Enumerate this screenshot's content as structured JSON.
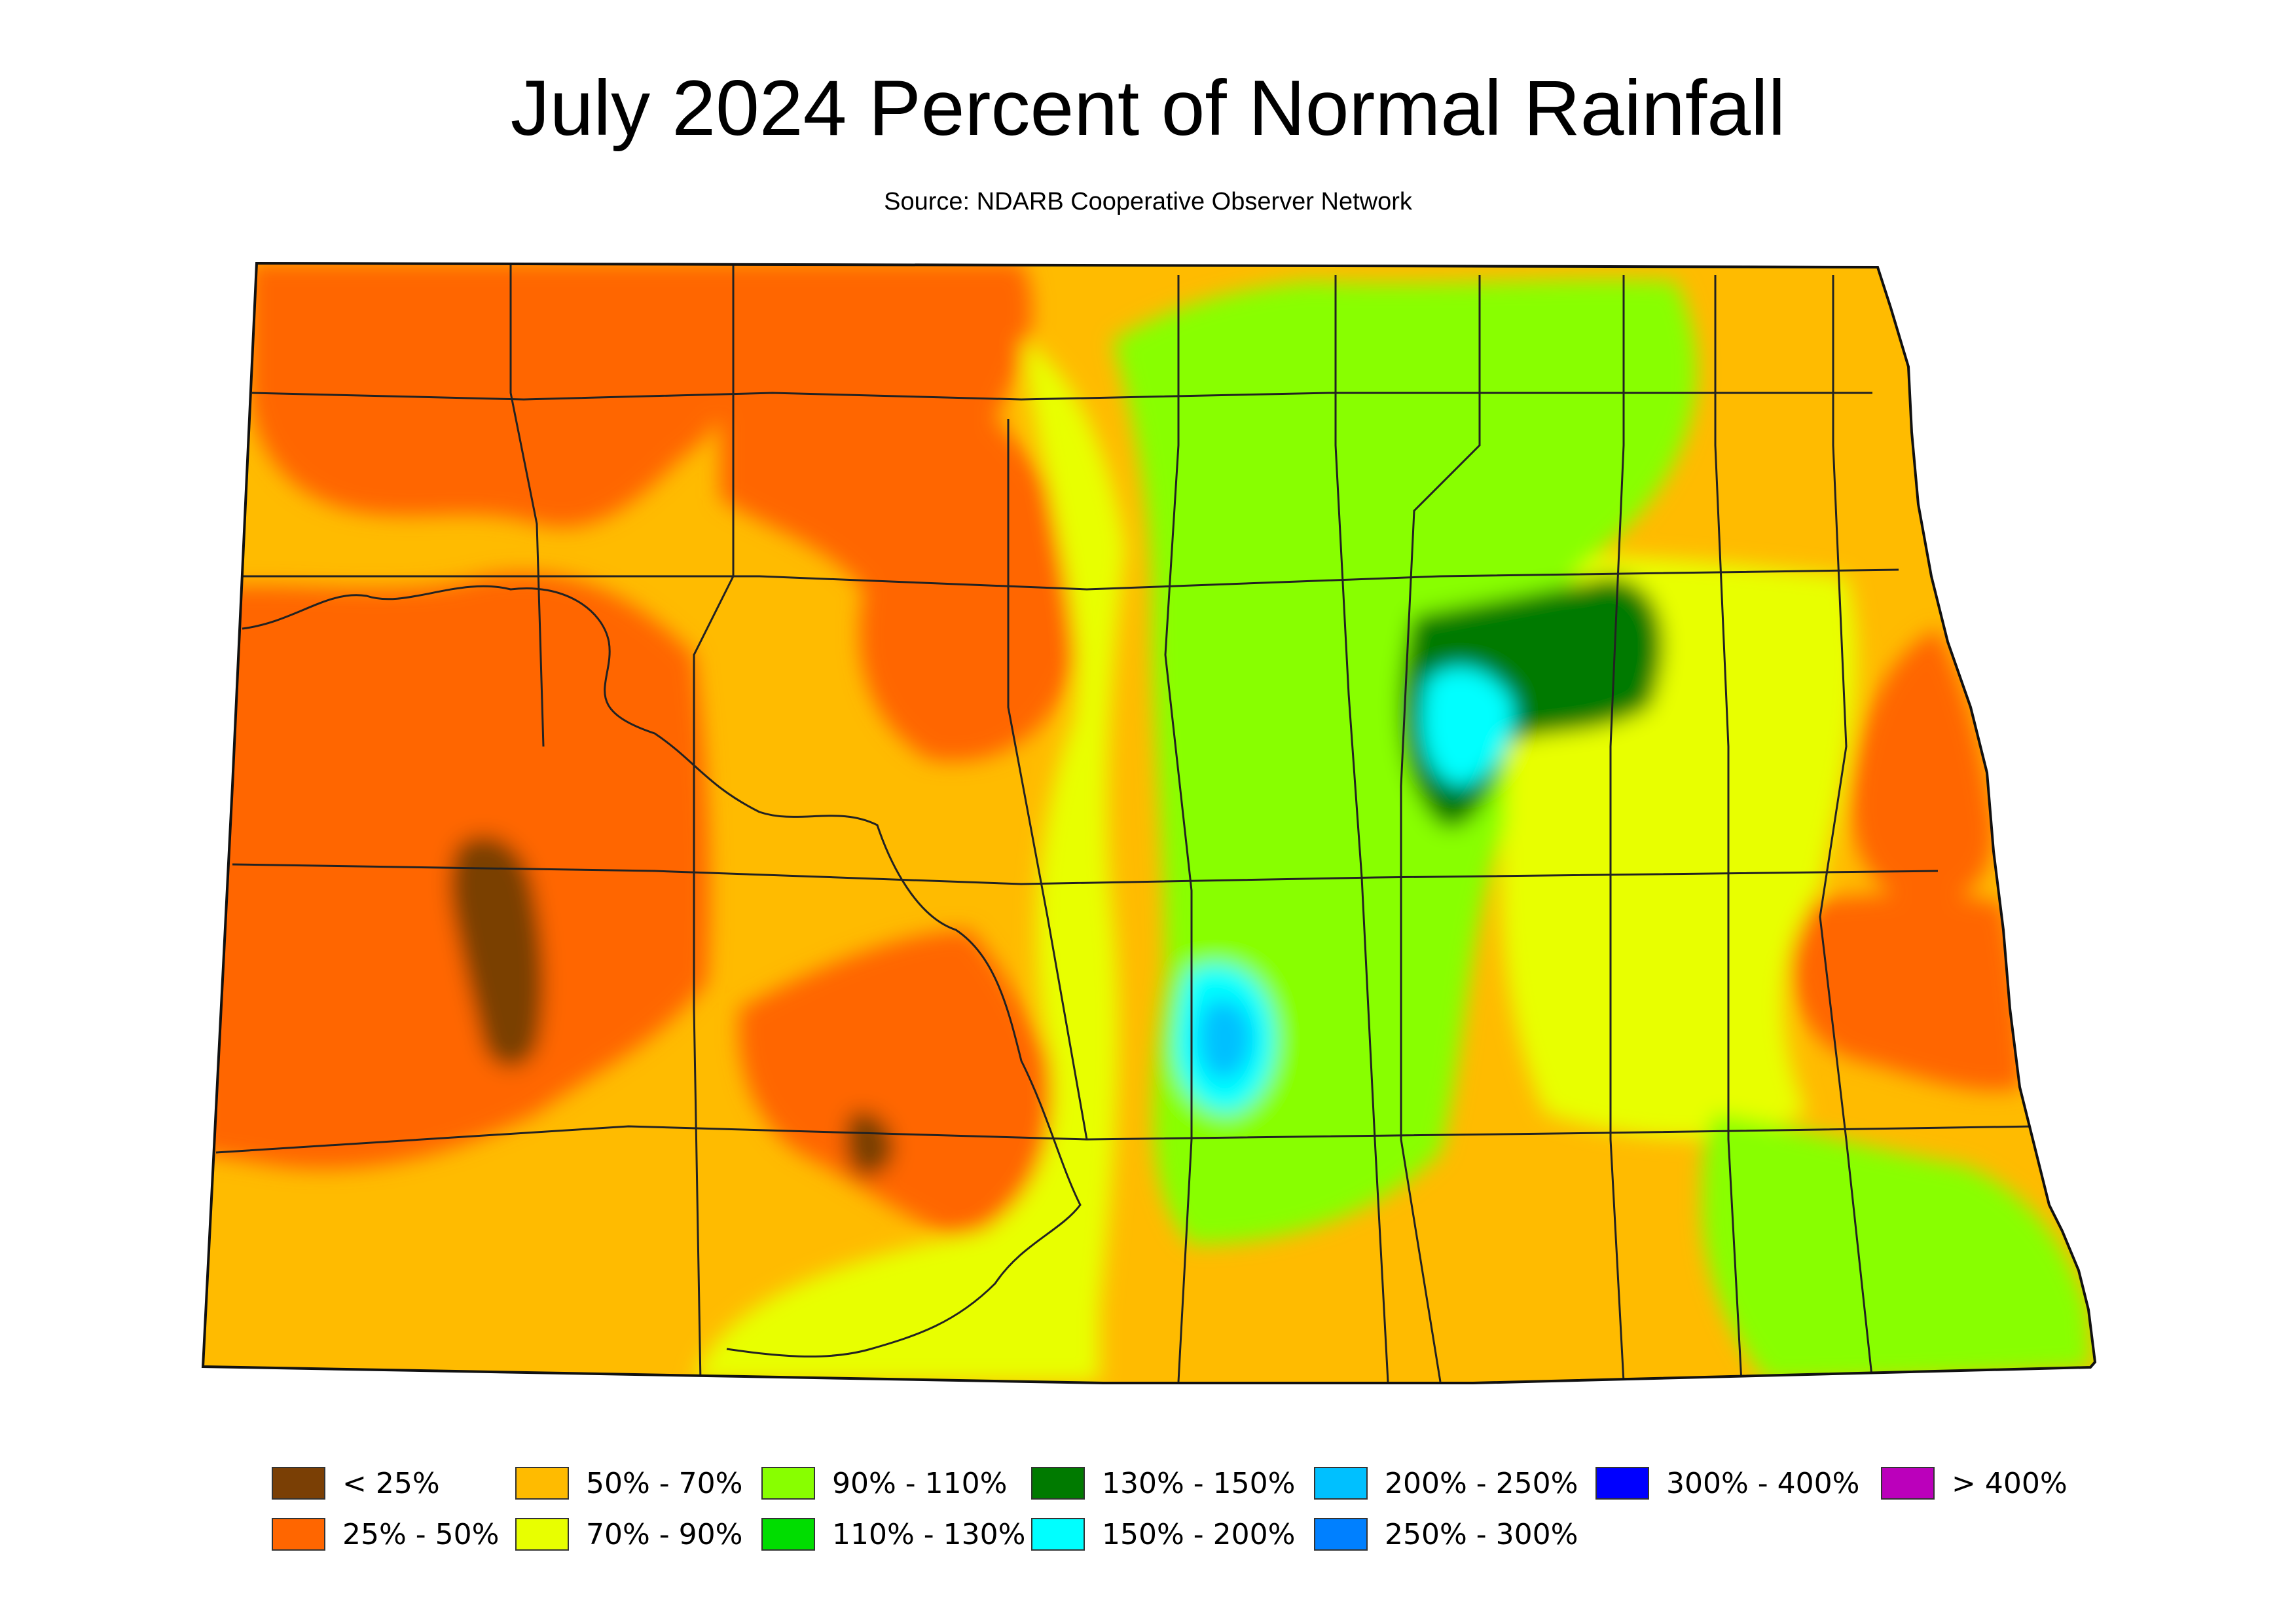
{
  "title": "July 2024 Percent of Normal Rainfall",
  "subtitle": "Source: NDARB Cooperative Observer Network",
  "legend": [
    {
      "label": "< 25%",
      "color": "#7a3f05"
    },
    {
      "label": "25% - 50%",
      "color": "#ff6600"
    },
    {
      "label": "50% - 70%",
      "color": "#ffbb00"
    },
    {
      "label": "70% - 90%",
      "color": "#e8ff00"
    },
    {
      "label": "90% - 110%",
      "color": "#88ff00"
    },
    {
      "label": "110% - 130%",
      "color": "#00dd00"
    },
    {
      "label": "130% - 150%",
      "color": "#007a00"
    },
    {
      "label": "150% - 200%",
      "color": "#00ffff"
    },
    {
      "label": "200% - 250%",
      "color": "#00c0ff"
    },
    {
      "label": "250% - 300%",
      "color": "#0080ff"
    },
    {
      "label": "300% - 400%",
      "color": "#0000ff"
    },
    {
      "label": "> 400%",
      "color": "#bb00bb"
    }
  ],
  "map": {
    "region": "North Dakota",
    "background_color": "#ffbb00",
    "zones": [
      {
        "name": "western-dry",
        "category": "25% - 50%",
        "color": "#ff6600"
      },
      {
        "name": "northwest-dry",
        "category": "25% - 50%",
        "color": "#ff6600"
      },
      {
        "name": "north-central-dry",
        "category": "25% - 50%",
        "color": "#ff6600"
      },
      {
        "name": "south-central-dry",
        "category": "25% - 50%",
        "color": "#ff6600"
      },
      {
        "name": "red-river-dry-north",
        "category": "25% - 50%",
        "color": "#ff6600"
      },
      {
        "name": "red-river-dry-south",
        "category": "25% - 50%",
        "color": "#ff6600"
      },
      {
        "name": "central-yellow",
        "category": "70% - 90%",
        "color": "#e8ff00"
      },
      {
        "name": "east-yellow",
        "category": "70% - 90%",
        "color": "#e8ff00"
      },
      {
        "name": "central-green",
        "category": "90% - 110%",
        "color": "#88ff00"
      },
      {
        "name": "southeast-green",
        "category": "90% - 110%",
        "color": "#88ff00"
      },
      {
        "name": "devils-lake-wet",
        "category": "130% - 150%",
        "color": "#007a00"
      },
      {
        "name": "devils-lake-very-wet",
        "category": "150% - 200%",
        "color": "#00ffff"
      },
      {
        "name": "central-wet",
        "category": "150% - 200%",
        "color": "#00ffff"
      },
      {
        "name": "central-very-wet",
        "category": "200% - 250%",
        "color": "#00c0ff"
      },
      {
        "name": "mercer-very-dry",
        "category": "< 25%",
        "color": "#7a3f05"
      },
      {
        "name": "southwest-very-dry",
        "category": "< 25%",
        "color": "#7a3f05"
      }
    ]
  }
}
